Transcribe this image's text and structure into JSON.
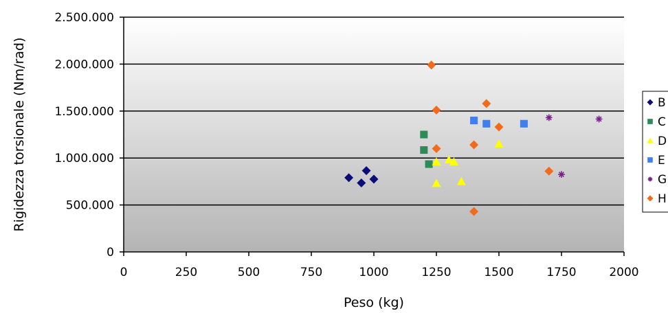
{
  "chart_data": {
    "type": "scatter",
    "title": "",
    "xlabel": "Peso (kg)",
    "ylabel": "Rigidezza torsionale (Nm/rad)",
    "xlim": [
      0,
      2000
    ],
    "ylim": [
      0,
      2500000
    ],
    "x_ticks": [
      0,
      250,
      500,
      750,
      1000,
      1250,
      1500,
      1750,
      2000
    ],
    "x_tick_labels": [
      "0",
      "250",
      "500",
      "750",
      "1000",
      "1250",
      "1500",
      "1750",
      "2000"
    ],
    "y_ticks": [
      0,
      500000,
      1000000,
      1500000,
      2000000,
      2500000
    ],
    "y_tick_labels": [
      "0",
      "500.000",
      "1.000.000",
      "1.500.000",
      "2.000.000",
      "2.500.000"
    ],
    "grid": "horizontal",
    "legend_position": "right",
    "background": "vertical gradient white to gray",
    "series": [
      {
        "name": "B",
        "marker": "diamond",
        "color": "#0b0b7a",
        "points": [
          [
            900,
            790000
          ],
          [
            950,
            735000
          ],
          [
            970,
            865000
          ],
          [
            1000,
            775000
          ]
        ]
      },
      {
        "name": "C",
        "marker": "square",
        "color": "#2e8b57",
        "points": [
          [
            1200,
            1250000
          ],
          [
            1200,
            1085000
          ],
          [
            1220,
            935000
          ]
        ]
      },
      {
        "name": "D",
        "marker": "triangle",
        "color": "#ffff00",
        "points": [
          [
            1250,
            960000
          ],
          [
            1300,
            980000
          ],
          [
            1320,
            960000
          ],
          [
            1250,
            730000
          ],
          [
            1350,
            750000
          ],
          [
            1500,
            1150000
          ]
        ]
      },
      {
        "name": "E",
        "marker": "square",
        "color": "#3f7fef",
        "points": [
          [
            1400,
            1400000
          ],
          [
            1450,
            1365000
          ],
          [
            1600,
            1365000
          ]
        ]
      },
      {
        "name": "G",
        "marker": "star",
        "color": "#7a1f8a",
        "points": [
          [
            1700,
            1430000
          ],
          [
            1750,
            825000
          ],
          [
            1900,
            1415000
          ]
        ]
      },
      {
        "name": "H",
        "marker": "circle",
        "color": "#f26b1d",
        "points": [
          [
            1230,
            1990000
          ],
          [
            1250,
            1510000
          ],
          [
            1250,
            1100000
          ],
          [
            1450,
            1580000
          ],
          [
            1500,
            1330000
          ],
          [
            1400,
            1140000
          ],
          [
            1700,
            860000
          ],
          [
            1400,
            430000
          ]
        ]
      }
    ]
  }
}
